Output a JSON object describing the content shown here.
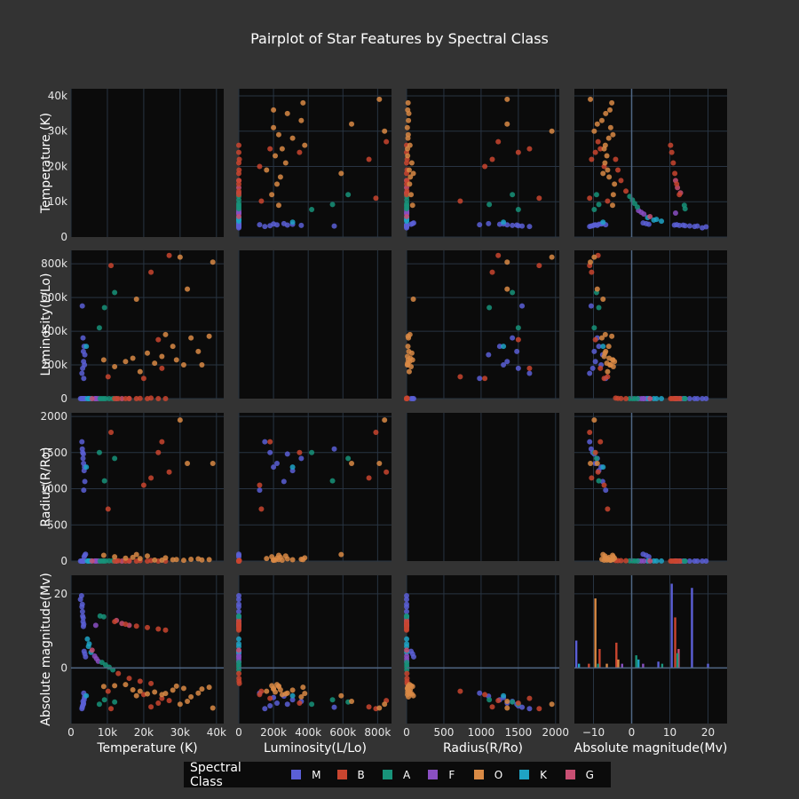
{
  "chart_data": {
    "type": "scatter",
    "title": "Pairplot of Star Features by Spectral Class",
    "legend": {
      "title": "Spectral Class",
      "placement": "bottom"
    },
    "series": [
      {
        "name": "M",
        "color": "#5b5fd6"
      },
      {
        "name": "B",
        "color": "#c9452f"
      },
      {
        "name": "A",
        "color": "#18937a"
      },
      {
        "name": "F",
        "color": "#8a4fc3"
      },
      {
        "name": "O",
        "color": "#d98a45"
      },
      {
        "name": "K",
        "color": "#1fa3c5"
      },
      {
        "name": "G",
        "color": "#c84f73"
      }
    ],
    "features": [
      {
        "label": "Temperature (K)",
        "range": [
          0,
          42000
        ],
        "ticks": [
          0,
          10000,
          20000,
          30000,
          40000
        ],
        "tick_labels": [
          "0",
          "10k",
          "20k",
          "30k",
          "40k"
        ]
      },
      {
        "label": "Luminosity(L/Lo)",
        "range": [
          0,
          880000
        ],
        "ticks": [
          0,
          200000,
          400000,
          600000,
          800000
        ],
        "tick_labels": [
          "0",
          "200k",
          "400k",
          "600k",
          "800k"
        ]
      },
      {
        "label": "Radius(R/Ro)",
        "range": [
          0,
          2050
        ],
        "ticks": [
          0,
          500,
          1000,
          1500,
          2000
        ],
        "tick_labels": [
          "0",
          "500",
          "1000",
          "1500",
          "2000"
        ]
      },
      {
        "label": "Absolute magnitude(Mv)",
        "range": [
          -15,
          25
        ],
        "ticks": [
          0,
          20
        ],
        "tick_labels": [
          "0",
          "20"
        ],
        "ticks_x": [
          -10,
          0,
          10,
          20
        ],
        "tick_labels_x": [
          "−10",
          "0",
          "10",
          "20"
        ]
      }
    ],
    "stars": [
      {
        "c": "M",
        "t": 2600,
        "l": 0.0004,
        "r": 0.1,
        "m": 18.5
      },
      {
        "c": "M",
        "t": 3000,
        "l": 0.002,
        "r": 0.17,
        "m": 16.5
      },
      {
        "c": "M",
        "t": 3150,
        "l": 0.003,
        "r": 0.2,
        "m": 15.2
      },
      {
        "c": "M",
        "t": 3200,
        "l": 0.005,
        "r": 0.3,
        "m": 14.0
      },
      {
        "c": "M",
        "t": 3300,
        "l": 0.01,
        "r": 0.4,
        "m": 12.5
      },
      {
        "c": "M",
        "t": 3400,
        "l": 0.02,
        "r": 0.5,
        "m": 11.2
      },
      {
        "c": "M",
        "t": 2900,
        "l": 0.001,
        "r": 0.12,
        "m": 19.5
      },
      {
        "c": "M",
        "t": 3100,
        "l": 0.003,
        "r": 0.22,
        "m": 17.2
      },
      {
        "c": "M",
        "t": 3350,
        "l": 0.008,
        "r": 0.35,
        "m": 13.5
      },
      {
        "c": "M",
        "t": 3500,
        "l": 0.04,
        "r": 0.6,
        "m": 11.8
      },
      {
        "c": "M",
        "t": 3600,
        "l": 0.5,
        "r": 60,
        "m": 4.5
      },
      {
        "c": "M",
        "t": 3800,
        "l": 1.2,
        "r": 80,
        "m": 3.8
      },
      {
        "c": "M",
        "t": 4000,
        "l": 2.0,
        "r": 95,
        "m": 3.0
      },
      {
        "c": "M",
        "t": 3200,
        "l": 180000,
        "r": 1500,
        "m": -10.2
      },
      {
        "c": "M",
        "t": 3450,
        "l": 220000,
        "r": 1350,
        "m": -9.5
      },
      {
        "c": "M",
        "t": 3600,
        "l": 310000,
        "r": 1250,
        "m": -8.6
      },
      {
        "c": "M",
        "t": 3000,
        "l": 150000,
        "r": 1650,
        "m": -11.0
      },
      {
        "c": "M",
        "t": 3800,
        "l": 260000,
        "r": 1100,
        "m": -7.6
      },
      {
        "c": "M",
        "t": 3300,
        "l": 360000,
        "r": 1420,
        "m": -9.0
      },
      {
        "c": "M",
        "t": 3500,
        "l": 120000,
        "r": 980,
        "m": -6.8
      },
      {
        "c": "M",
        "t": 3100,
        "l": 550000,
        "r": 1550,
        "m": -10.6
      },
      {
        "c": "M",
        "t": 3700,
        "l": 200000,
        "r": 1300,
        "m": -8.0
      },
      {
        "c": "M",
        "t": 3400,
        "l": 280000,
        "r": 1480,
        "m": -9.8
      },
      {
        "c": "K",
        "t": 4500,
        "l": 0.15,
        "r": 0.8,
        "m": 7.8
      },
      {
        "c": "K",
        "t": 5000,
        "l": 0.4,
        "r": 0.9,
        "m": 6.5
      },
      {
        "c": "K",
        "t": 4800,
        "l": 0.3,
        "r": 0.85,
        "m": 5.8
      },
      {
        "c": "K",
        "t": 4200,
        "l": 310000,
        "r": 1300,
        "m": -7.5
      },
      {
        "c": "K",
        "t": 5500,
        "l": 2.0,
        "r": 1.1,
        "m": 4.2
      },
      {
        "c": "F",
        "t": 6500,
        "l": 1.5,
        "r": 1.3,
        "m": 3.2
      },
      {
        "c": "F",
        "t": 7000,
        "l": 3.0,
        "r": 1.5,
        "m": 2.5
      },
      {
        "c": "F",
        "t": 7500,
        "l": 6.0,
        "r": 1.8,
        "m": 1.8
      },
      {
        "c": "F",
        "t": 6800,
        "l": 2.2,
        "r": 1.4,
        "m": 11.5
      },
      {
        "c": "G",
        "t": 5800,
        "l": 1.0,
        "r": 1.0,
        "m": 4.8
      },
      {
        "c": "G",
        "t": 14000,
        "l": 0.002,
        "r": 0.01,
        "m": 12.0
      },
      {
        "c": "G",
        "t": 16000,
        "l": 0.003,
        "r": 0.012,
        "m": 11.5
      },
      {
        "c": "G",
        "t": 12500,
        "l": 0.0015,
        "r": 0.009,
        "m": 12.8
      },
      {
        "c": "A",
        "t": 8500,
        "l": 15,
        "r": 1.8,
        "m": 1.5
      },
      {
        "c": "A",
        "t": 9500,
        "l": 25,
        "r": 2.2,
        "m": 0.8
      },
      {
        "c": "A",
        "t": 10500,
        "l": 40,
        "r": 2.5,
        "m": 0.2
      },
      {
        "c": "A",
        "t": 11500,
        "l": 60,
        "r": 2.8,
        "m": -0.5
      },
      {
        "c": "A",
        "t": 8000,
        "l": 0.0008,
        "r": 0.01,
        "m": 14.0
      },
      {
        "c": "A",
        "t": 9000,
        "l": 0.001,
        "r": 0.012,
        "m": 13.8
      },
      {
        "c": "A",
        "t": 12000,
        "l": 630000,
        "r": 1420,
        "m": -9.2
      },
      {
        "c": "A",
        "t": 9200,
        "l": 540000,
        "r": 1110,
        "m": -8.6
      },
      {
        "c": "A",
        "t": 7800,
        "l": 420000,
        "r": 1500,
        "m": -9.8
      },
      {
        "c": "B",
        "t": 12000,
        "l": 0.0015,
        "r": 0.01,
        "m": 12.5
      },
      {
        "c": "B",
        "t": 15000,
        "l": 0.002,
        "r": 0.011,
        "m": 11.8
      },
      {
        "c": "B",
        "t": 18000,
        "l": 0.003,
        "r": 0.012,
        "m": 11.3
      },
      {
        "c": "B",
        "t": 21000,
        "l": 0.004,
        "r": 0.013,
        "m": 10.9
      },
      {
        "c": "B",
        "t": 24000,
        "l": 0.005,
        "r": 0.014,
        "m": 10.5
      },
      {
        "c": "B",
        "t": 26000,
        "l": 0.006,
        "r": 0.015,
        "m": 10.2
      },
      {
        "c": "B",
        "t": 13000,
        "l": 200,
        "r": 4.5,
        "m": -1.5
      },
      {
        "c": "B",
        "t": 16000,
        "l": 800,
        "r": 5.5,
        "m": -2.8
      },
      {
        "c": "B",
        "t": 19000,
        "l": 1500,
        "r": 6.5,
        "m": -3.6
      },
      {
        "c": "B",
        "t": 22000,
        "l": 3000,
        "r": 7.0,
        "m": -4.2
      },
      {
        "c": "B",
        "t": 20000,
        "l": 120000,
        "r": 1050,
        "m": -7.2
      },
      {
        "c": "B",
        "t": 11000,
        "l": 790000,
        "r": 1780,
        "m": -11.0
      },
      {
        "c": "B",
        "t": 24000,
        "l": 350000,
        "r": 1500,
        "m": -9.5
      },
      {
        "c": "B",
        "t": 25000,
        "l": 180000,
        "r": 1650,
        "m": -8.2
      },
      {
        "c": "B",
        "t": 10200,
        "l": 130000,
        "r": 720,
        "m": -6.3
      },
      {
        "c": "B",
        "t": 22000,
        "l": 750000,
        "r": 1150,
        "m": -10.5
      },
      {
        "c": "B",
        "t": 27000,
        "l": 850000,
        "r": 1230,
        "m": -8.8
      },
      {
        "c": "O",
        "t": 23000,
        "l": 210000,
        "r": 14,
        "m": -6.5
      },
      {
        "c": "O",
        "t": 25000,
        "l": 250000,
        "r": 12,
        "m": -7.2
      },
      {
        "c": "O",
        "t": 28000,
        "l": 310000,
        "r": 18,
        "m": -6.0
      },
      {
        "c": "O",
        "t": 31000,
        "l": 200000,
        "r": 10,
        "m": -5.5
      },
      {
        "c": "O",
        "t": 33000,
        "l": 360000,
        "r": 25,
        "m": -7.8
      },
      {
        "c": "O",
        "t": 35000,
        "l": 280000,
        "r": 30,
        "m": -6.8
      },
      {
        "c": "O",
        "t": 38000,
        "l": 370000,
        "r": 20,
        "m": -5.2
      },
      {
        "c": "O",
        "t": 39000,
        "l": 810000,
        "r": 1350,
        "m": -10.8
      },
      {
        "c": "O",
        "t": 30000,
        "l": 840000,
        "r": 1950,
        "m": -9.8
      },
      {
        "c": "O",
        "t": 32000,
        "l": 650000,
        "r": 1350,
        "m": -9.0
      },
      {
        "c": "O",
        "t": 15000,
        "l": 220000,
        "r": 40,
        "m": -4.5
      },
      {
        "c": "O",
        "t": 12000,
        "l": 190000,
        "r": 60,
        "m": -4.8
      },
      {
        "c": "O",
        "t": 17000,
        "l": 240000,
        "r": 50,
        "m": -5.9
      },
      {
        "c": "O",
        "t": 19000,
        "l": 160000,
        "r": 35,
        "m": -6.3
      },
      {
        "c": "O",
        "t": 21000,
        "l": 270000,
        "r": 70,
        "m": -7.0
      },
      {
        "c": "O",
        "t": 9000,
        "l": 230000,
        "r": 80,
        "m": -5.0
      },
      {
        "c": "O",
        "t": 26000,
        "l": 380000,
        "r": 45,
        "m": -6.9
      },
      {
        "c": "O",
        "t": 36000,
        "l": 200000,
        "r": 15,
        "m": -5.7
      },
      {
        "c": "O",
        "t": 29000,
        "l": 230000,
        "r": 22,
        "m": -4.9
      },
      {
        "c": "O",
        "t": 18000,
        "l": 590000,
        "r": 90,
        "m": -7.5
      }
    ],
    "diagonal_histogram": {
      "feature": "Absolute magnitude(Mv)",
      "bars": [
        {
          "c": "M",
          "x": -14.5,
          "h": 13
        },
        {
          "c": "K",
          "x": -13.8,
          "h": 2
        },
        {
          "c": "B",
          "x": -11.2,
          "h": 2
        },
        {
          "c": "O",
          "x": -9.5,
          "h": 33
        },
        {
          "c": "B",
          "x": -8.4,
          "h": 9
        },
        {
          "c": "A",
          "x": -8.8,
          "h": 2
        },
        {
          "c": "O",
          "x": -6.5,
          "h": 2
        },
        {
          "c": "B",
          "x": -4.0,
          "h": 12
        },
        {
          "c": "O",
          "x": -3.5,
          "h": 4
        },
        {
          "c": "F",
          "x": -2.5,
          "h": 2
        },
        {
          "c": "A",
          "x": 1.2,
          "h": 6
        },
        {
          "c": "K",
          "x": 1.8,
          "h": 4
        },
        {
          "c": "F",
          "x": 3.0,
          "h": 2
        },
        {
          "c": "M",
          "x": 7.0,
          "h": 3
        },
        {
          "c": "A",
          "x": 8.0,
          "h": 2
        },
        {
          "c": "M",
          "x": 10.5,
          "h": 40
        },
        {
          "c": "B",
          "x": 11.4,
          "h": 24
        },
        {
          "c": "G",
          "x": 12.3,
          "h": 9
        },
        {
          "c": "A",
          "x": 12.0,
          "h": 7
        },
        {
          "c": "M",
          "x": 15.8,
          "h": 38
        },
        {
          "c": "M",
          "x": 20.0,
          "h": 2
        }
      ]
    }
  }
}
